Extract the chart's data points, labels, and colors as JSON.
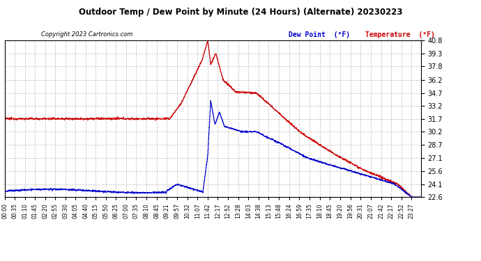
{
  "title": "Outdoor Temp / Dew Point by Minute (24 Hours) (Alternate) 20230223",
  "copyright": "Copyright 2023 Cartronics.com",
  "legend_dew": "Dew Point  (°F)",
  "legend_temp": "Temperature  (°F)",
  "temp_color": "#cc0000",
  "dew_color": "#0000cc",
  "bg_color": "#ffffff",
  "grid_color": "#aaaaaa",
  "yticks": [
    22.6,
    24.1,
    25.6,
    27.1,
    28.7,
    30.2,
    31.7,
    33.2,
    34.7,
    36.2,
    37.8,
    39.3,
    40.8
  ],
  "ymin": 22.6,
  "ymax": 40.8,
  "figsize": [
    6.9,
    3.75
  ],
  "dpi": 100,
  "xtick_labels": [
    "00:00",
    "00:35",
    "01:10",
    "01:45",
    "02:20",
    "02:55",
    "03:30",
    "04:05",
    "04:40",
    "05:15",
    "05:50",
    "06:25",
    "07:00",
    "07:35",
    "08:10",
    "08:45",
    "09:21",
    "09:57",
    "10:32",
    "11:07",
    "11:42",
    "12:17",
    "12:52",
    "13:28",
    "14:03",
    "14:38",
    "15:13",
    "15:48",
    "16:24",
    "16:59",
    "17:35",
    "18:10",
    "18:45",
    "19:20",
    "19:56",
    "20:31",
    "21:07",
    "21:42",
    "22:17",
    "22:52",
    "23:27"
  ]
}
